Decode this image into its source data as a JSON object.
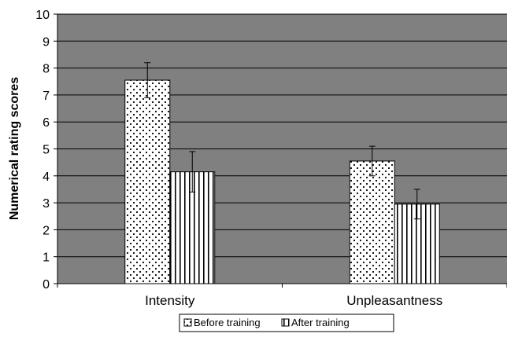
{
  "chart_data": {
    "type": "bar",
    "title": "",
    "xlabel": "",
    "ylabel": "Numerical rating scores",
    "ylim": [
      0,
      10
    ],
    "yticks": [
      "0",
      "1",
      "2",
      "3",
      "4",
      "5",
      "6",
      "7",
      "8",
      "9",
      "10"
    ],
    "categories": [
      "Intensity",
      "Unpleasantness"
    ],
    "series": [
      {
        "name": "Before training",
        "values": [
          7.55,
          4.55
        ],
        "error": [
          0.65,
          0.55
        ],
        "pattern": "dots"
      },
      {
        "name": "After training",
        "values": [
          4.15,
          2.95
        ],
        "error": [
          0.75,
          0.55
        ],
        "pattern": "vertical-stripes"
      }
    ],
    "grid": true,
    "legend_position": "bottom",
    "colors": {
      "plot_background": "#808080",
      "bar_fill": "#ffffff",
      "pattern": "#000000",
      "grid": "#000000"
    }
  }
}
